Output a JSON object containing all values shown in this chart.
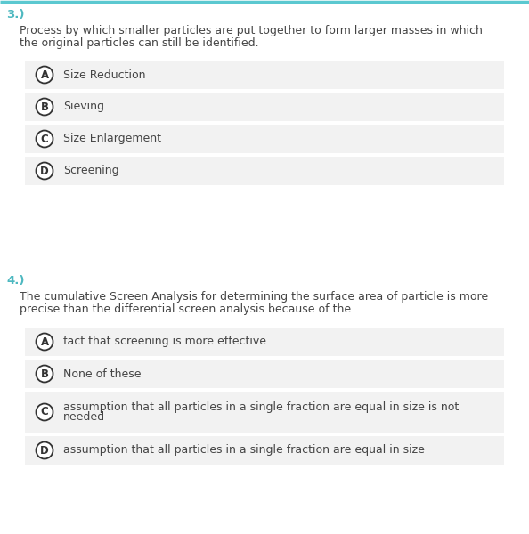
{
  "bg_color": "#ffffff",
  "top_border_color": "#5bc8d0",
  "question_number_color": "#4db8c0",
  "question_text_color": "#444444",
  "option_bg_color": "#f2f2f2",
  "option_text_color": "#444444",
  "circle_edge_color": "#333333",
  "circle_fill_color": "#ffffff",
  "question1_number": "3.)",
  "question1_text_line1": "Process by which smaller particles are put together to form larger masses in which",
  "question1_text_line2": "the original particles can still be identified.",
  "question1_options": [
    {
      "label": "A",
      "text": "Size Reduction"
    },
    {
      "label": "B",
      "text": "Sieving"
    },
    {
      "label": "C",
      "text": "Size Enlargement"
    },
    {
      "label": "D",
      "text": "Screening"
    }
  ],
  "question2_number": "4.)",
  "question2_text_line1": "The cumulative Screen Analysis for determining the surface area of particle is more",
  "question2_text_line2": "precise than the differential screen analysis because of the",
  "question2_options": [
    {
      "label": "A",
      "text1": "fact that screening is more effective",
      "text2": null
    },
    {
      "label": "B",
      "text1": "None of these",
      "text2": null
    },
    {
      "label": "C",
      "text1": "assumption that all particles in a single fraction are equal in size is not",
      "text2": "needed"
    },
    {
      "label": "D",
      "text1": "assumption that all particles in a single fraction are equal in size",
      "text2": null
    }
  ],
  "font_size_qnum": 9.5,
  "font_size_qtext": 9.0,
  "font_size_opt": 9.0,
  "font_size_label": 8.5
}
